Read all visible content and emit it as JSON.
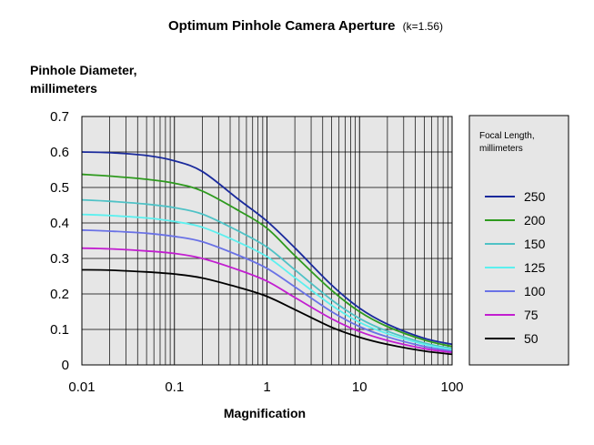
{
  "chart_data": {
    "type": "line",
    "title": "Optimum Pinhole Camera Aperture",
    "title_suffix": "(k=1.56)",
    "ylabel_line1": "Pinhole Diameter,",
    "ylabel_line2": "millimeters",
    "xlabel": "Magnification",
    "x_scale": "log",
    "xlim": [
      0.01,
      100
    ],
    "ylim": [
      0,
      0.7
    ],
    "grid": true,
    "legend_position": "right",
    "legend_title_line1": "Focal Length,",
    "legend_title_line2": "millimeters",
    "x_tick_labels": [
      "0.01",
      "0.1",
      "1",
      "10",
      "100"
    ],
    "y_tick_labels": [
      "0",
      "0.1",
      "0.2",
      "0.3",
      "0.4",
      "0.5",
      "0.6",
      "0.7"
    ],
    "x": [
      0.01,
      0.02,
      0.05,
      0.1,
      0.2,
      0.5,
      1,
      2,
      5,
      10,
      20,
      50,
      100
    ],
    "series": [
      {
        "name": "250",
        "color": "#1a2a9c",
        "values": [
          0.6,
          0.598,
          0.59,
          0.575,
          0.545,
          0.465,
          0.405,
          0.33,
          0.225,
          0.16,
          0.115,
          0.075,
          0.058
        ]
      },
      {
        "name": "200",
        "color": "#2e9a1e",
        "values": [
          0.537,
          0.532,
          0.523,
          0.512,
          0.49,
          0.434,
          0.385,
          0.308,
          0.21,
          0.15,
          0.108,
          0.07,
          0.052
        ]
      },
      {
        "name": "150",
        "color": "#4fc2c6",
        "values": [
          0.465,
          0.461,
          0.453,
          0.443,
          0.425,
          0.376,
          0.332,
          0.268,
          0.183,
          0.131,
          0.095,
          0.062,
          0.046
        ]
      },
      {
        "name": "125",
        "color": "#5cf0ef",
        "values": [
          0.424,
          0.421,
          0.414,
          0.404,
          0.388,
          0.345,
          0.305,
          0.246,
          0.168,
          0.12,
          0.088,
          0.058,
          0.043
        ]
      },
      {
        "name": "100",
        "color": "#6a72e6",
        "values": [
          0.38,
          0.377,
          0.371,
          0.362,
          0.347,
          0.308,
          0.272,
          0.22,
          0.15,
          0.108,
          0.079,
          0.052,
          0.039
        ]
      },
      {
        "name": "75",
        "color": "#c21ed0",
        "values": [
          0.329,
          0.327,
          0.321,
          0.314,
          0.3,
          0.267,
          0.236,
          0.19,
          0.13,
          0.094,
          0.069,
          0.046,
          0.035
        ]
      },
      {
        "name": "50",
        "color": "#000000",
        "values": [
          0.268,
          0.267,
          0.262,
          0.256,
          0.245,
          0.218,
          0.193,
          0.156,
          0.106,
          0.078,
          0.058,
          0.039,
          0.03
        ]
      }
    ]
  }
}
